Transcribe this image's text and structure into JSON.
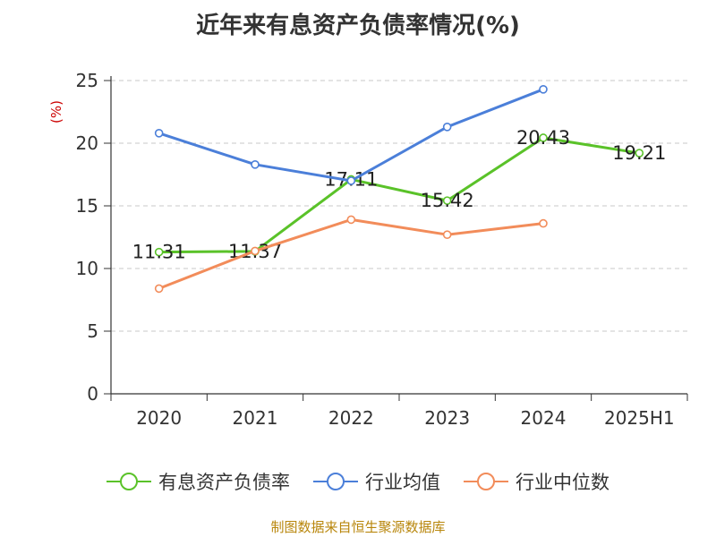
{
  "chart_data": {
    "type": "line",
    "title": "近年来有息资产负债率情况(%)",
    "ylabel": "(%)",
    "xlabel": "",
    "ylim": [
      0,
      25
    ],
    "yticks": [
      "0",
      "5",
      "10",
      "15",
      "20",
      "25"
    ],
    "grid": true,
    "legend_position": "bottom",
    "categories": [
      "2020",
      "2021",
      "2022",
      "2023",
      "2024",
      "2025H1"
    ],
    "series": [
      {
        "name": "有息资产负债率",
        "color": "#5ac229",
        "values": [
          11.31,
          11.37,
          17.11,
          15.42,
          20.43,
          19.21
        ],
        "labels": [
          "11.31",
          "11.37",
          "17.11",
          "15.42",
          "20.43",
          "19.21"
        ]
      },
      {
        "name": "行业均值",
        "color": "#4b7fd9",
        "values": [
          20.8,
          18.3,
          17.0,
          21.3,
          24.3,
          null
        ]
      },
      {
        "name": "行业中位数",
        "color": "#f28c5a",
        "values": [
          8.4,
          11.4,
          13.9,
          12.7,
          13.6,
          null
        ]
      }
    ]
  },
  "source": "制图数据来自恒生聚源数据库"
}
